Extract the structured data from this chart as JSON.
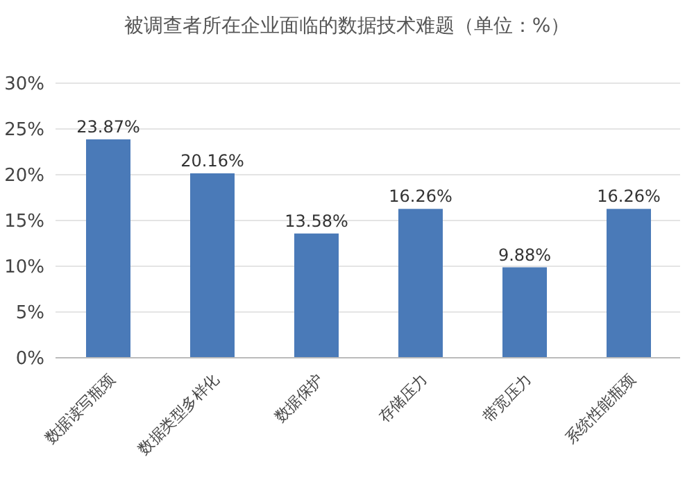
{
  "chart_data": {
    "type": "bar",
    "title": "被调查者所在企业面临的数据技术难题（单位：%）",
    "categories": [
      "数据读写瓶颈",
      "数据类型多样化",
      "数据保护",
      "存储压力",
      "带宽压力",
      "系统性能瓶颈"
    ],
    "values": [
      23.87,
      20.16,
      13.58,
      16.26,
      9.88,
      16.26
    ],
    "value_labels": [
      "23.87%",
      "20.16%",
      "13.58%",
      "16.26%",
      "9.88%",
      "16.26%"
    ],
    "color": "#4a7ab8",
    "ylim": [
      0,
      30
    ],
    "yticks": [
      {
        "value": 0,
        "label": "0%"
      },
      {
        "value": 5,
        "label": "5%"
      },
      {
        "value": 10,
        "label": "10%"
      },
      {
        "value": 15,
        "label": "15%"
      },
      {
        "value": 20,
        "label": "20%"
      },
      {
        "value": 25,
        "label": "25%"
      },
      {
        "value": 30,
        "label": "30%"
      }
    ],
    "grid": "y"
  }
}
